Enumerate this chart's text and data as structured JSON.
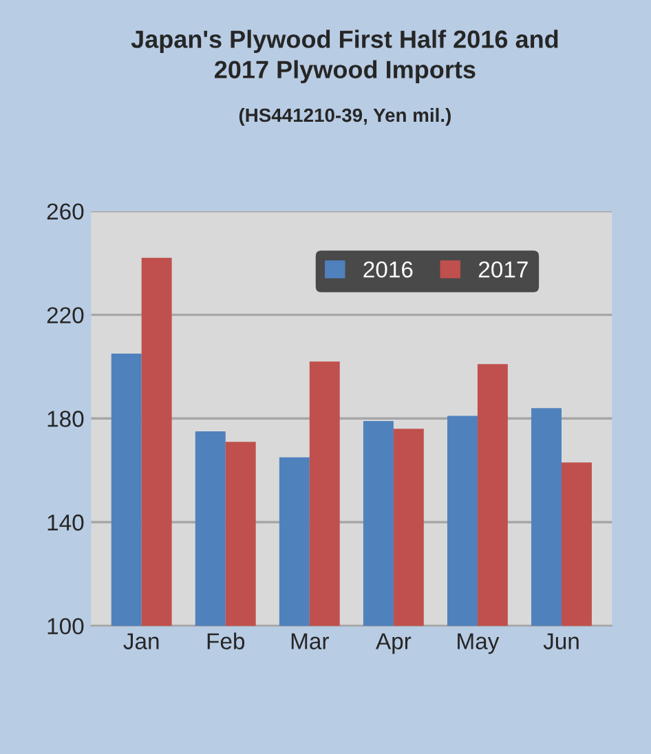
{
  "chart_data": {
    "type": "bar",
    "title": "Japan's Plywood First Half 2016 and\n2017 Plywood Imports",
    "subtitle": "(HS441210-39, Yen mil.)",
    "categories": [
      "Jan",
      "Feb",
      "Mar",
      "Apr",
      "May",
      "Jun"
    ],
    "series": [
      {
        "name": "2016",
        "color": "#4f81bd",
        "values": [
          205,
          175,
          165,
          179,
          181,
          184
        ]
      },
      {
        "name": "2017",
        "color": "#c0504d",
        "values": [
          242,
          171,
          202,
          176,
          201,
          163
        ]
      }
    ],
    "ylim": [
      100,
      260
    ],
    "yticks": [
      100,
      140,
      180,
      220,
      260
    ],
    "grid": "y",
    "legend": "top right"
  }
}
